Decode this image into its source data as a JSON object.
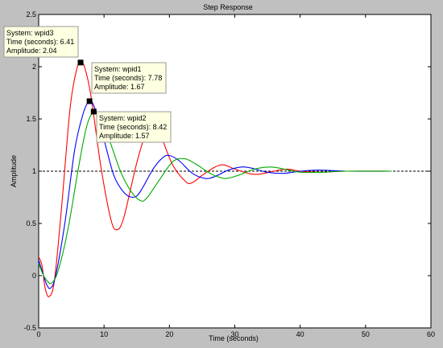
{
  "window": {
    "background": "#c0c0c0"
  },
  "chart_data": {
    "type": "line",
    "title": "Step Response",
    "xlabel": "Time (seconds)",
    "ylabel": "Amplitude",
    "xlim": [
      0,
      60
    ],
    "ylim": [
      -0.5,
      2.5
    ],
    "xticks": [
      "0",
      "10",
      "20",
      "30",
      "40",
      "50",
      "60"
    ],
    "yticks": [
      "-0.5",
      "0",
      "0.5",
      "1",
      "1.5",
      "2",
      "2.5"
    ],
    "xtick_values": [
      0,
      10,
      20,
      30,
      40,
      50,
      60
    ],
    "ytick_values": [
      -0.5,
      0,
      0.5,
      1,
      1.5,
      2,
      2.5
    ],
    "reference_line": {
      "y": 1,
      "style": "dotted",
      "color": "#000000"
    },
    "grid": false,
    "series": [
      {
        "name": "wpid3",
        "color": "#ff0000",
        "t_end": 54,
        "points": [
          [
            0,
            0.18
          ],
          [
            0.5,
            0.1
          ],
          [
            1,
            -0.12
          ],
          [
            1.6,
            -0.2
          ],
          [
            2.4,
            -0.05
          ],
          [
            3.5,
            0.65
          ],
          [
            4.8,
            1.6
          ],
          [
            5.8,
            1.97
          ],
          [
            6.41,
            2.04
          ],
          [
            7,
            2.0
          ],
          [
            8,
            1.72
          ],
          [
            9.5,
            1.05
          ],
          [
            11,
            0.55
          ],
          [
            11.9,
            0.44
          ],
          [
            13,
            0.55
          ],
          [
            15,
            1.08
          ],
          [
            16.5,
            1.38
          ],
          [
            17.2,
            1.43
          ],
          [
            18.5,
            1.36
          ],
          [
            20.5,
            1.06
          ],
          [
            22.5,
            0.9
          ],
          [
            23.5,
            0.89
          ],
          [
            25,
            0.96
          ],
          [
            27,
            1.04
          ],
          [
            28.3,
            1.06
          ],
          [
            30,
            1.02
          ],
          [
            32,
            0.98
          ],
          [
            33.5,
            0.97
          ],
          [
            36,
            1.0
          ],
          [
            38,
            1.02
          ],
          [
            40,
            1.0
          ],
          [
            43,
            0.99
          ],
          [
            47,
            1.0
          ],
          [
            54,
            1.0
          ]
        ]
      },
      {
        "name": "wpid1",
        "color": "#0000ff",
        "t_end": 54,
        "points": [
          [
            0,
            0.15
          ],
          [
            0.5,
            0.05
          ],
          [
            1.2,
            -0.08
          ],
          [
            1.8,
            -0.12
          ],
          [
            2.6,
            0.0
          ],
          [
            4,
            0.5
          ],
          [
            5.5,
            1.2
          ],
          [
            6.8,
            1.55
          ],
          [
            7.78,
            1.67
          ],
          [
            8.6,
            1.6
          ],
          [
            10,
            1.3
          ],
          [
            11.5,
            0.96
          ],
          [
            13,
            0.8
          ],
          [
            14.4,
            0.75
          ],
          [
            15.5,
            0.8
          ],
          [
            17.5,
            1.02
          ],
          [
            19,
            1.13
          ],
          [
            20,
            1.15
          ],
          [
            21.5,
            1.1
          ],
          [
            23.5,
            0.98
          ],
          [
            25.5,
            0.93
          ],
          [
            27,
            0.95
          ],
          [
            29,
            1.01
          ],
          [
            31,
            1.04
          ],
          [
            32.5,
            1.03
          ],
          [
            35,
            0.99
          ],
          [
            37.5,
            0.98
          ],
          [
            40,
            1.0
          ],
          [
            43,
            1.01
          ],
          [
            47,
            1.0
          ],
          [
            54,
            1.0
          ]
        ]
      },
      {
        "name": "wpid2",
        "color": "#00aa00",
        "t_end": 54,
        "points": [
          [
            0,
            0.12
          ],
          [
            0.6,
            0.02
          ],
          [
            1.3,
            -0.05
          ],
          [
            2,
            -0.07
          ],
          [
            3,
            0.05
          ],
          [
            4.5,
            0.45
          ],
          [
            6,
            1.0
          ],
          [
            7.3,
            1.42
          ],
          [
            8.42,
            1.57
          ],
          [
            9.3,
            1.52
          ],
          [
            10.8,
            1.3
          ],
          [
            12.5,
            1.0
          ],
          [
            14,
            0.82
          ],
          [
            15.5,
            0.72
          ],
          [
            16.5,
            0.74
          ],
          [
            18.5,
            0.92
          ],
          [
            20.5,
            1.09
          ],
          [
            22.3,
            1.12
          ],
          [
            24,
            1.07
          ],
          [
            26.5,
            0.97
          ],
          [
            28.5,
            0.93
          ],
          [
            30.5,
            0.96
          ],
          [
            33,
            1.02
          ],
          [
            35.5,
            1.04
          ],
          [
            37.5,
            1.02
          ],
          [
            40,
            0.99
          ],
          [
            43,
            0.99
          ],
          [
            47,
            1.0
          ],
          [
            54,
            1.0
          ]
        ]
      }
    ],
    "datatips": [
      {
        "series": "wpid3",
        "x": 6.41,
        "y": 2.04,
        "system_label": "System: wpid3",
        "time_label": "Time (seconds): 6.41",
        "amp_label": "Amplitude: 2.04"
      },
      {
        "series": "wpid1",
        "x": 7.78,
        "y": 1.67,
        "system_label": "System: wpid1",
        "time_label": "Time (seconds): 7.78",
        "amp_label": "Amplitude: 1.67"
      },
      {
        "series": "wpid2",
        "x": 8.42,
        "y": 1.57,
        "system_label": "System: wpid2",
        "time_label": "Time (seconds): 8.42",
        "amp_label": "Amplitude: 1.57"
      }
    ]
  }
}
